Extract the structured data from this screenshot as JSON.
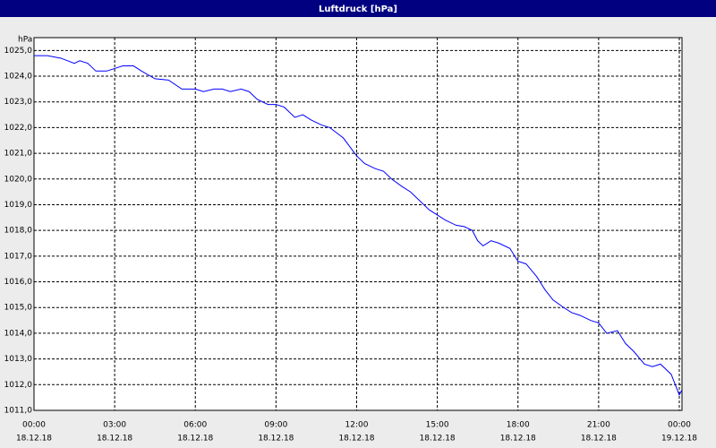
{
  "chart_data": {
    "type": "line",
    "title": "Luftdruck [hPa]",
    "y_label": "hPa",
    "x": [
      0,
      0.5,
      1,
      1.5,
      1.7,
      2,
      2.3,
      2.7,
      3,
      3.3,
      3.7,
      4,
      4.5,
      5,
      5.5,
      6,
      6.3,
      6.7,
      7,
      7.3,
      7.7,
      8,
      8.3,
      8.7,
      9,
      9.3,
      9.7,
      10,
      10.3,
      10.7,
      11,
      11.5,
      12,
      12.3,
      12.7,
      13,
      13.3,
      13.7,
      14,
      14.3,
      14.7,
      15,
      15.3,
      15.7,
      16,
      16.3,
      16.5,
      16.7,
      17,
      17.3,
      17.7,
      18,
      18.3,
      18.7,
      19,
      19.3,
      19.7,
      20,
      20.3,
      20.7,
      21,
      21.3,
      21.7,
      22,
      22.3,
      22.7,
      23,
      23.3,
      23.7,
      24,
      24.1
    ],
    "series": [
      {
        "name": "Luftdruck",
        "color": "#0000ff",
        "values": [
          1024.8,
          1024.8,
          1024.7,
          1024.5,
          1024.6,
          1024.5,
          1024.2,
          1024.2,
          1024.3,
          1024.4,
          1024.4,
          1024.2,
          1023.9,
          1023.85,
          1023.5,
          1023.5,
          1023.4,
          1023.5,
          1023.5,
          1023.4,
          1023.5,
          1023.4,
          1023.1,
          1022.9,
          1022.9,
          1022.8,
          1022.4,
          1022.5,
          1022.3,
          1022.1,
          1022.0,
          1021.6,
          1020.9,
          1020.6,
          1020.4,
          1020.3,
          1020.0,
          1019.7,
          1019.5,
          1019.2,
          1018.8,
          1018.6,
          1018.4,
          1018.2,
          1018.15,
          1018.0,
          1017.6,
          1017.4,
          1017.6,
          1017.5,
          1017.3,
          1016.8,
          1016.7,
          1016.2,
          1015.7,
          1015.3,
          1015.0,
          1014.8,
          1014.7,
          1014.5,
          1014.4,
          1014.0,
          1014.1,
          1013.6,
          1013.3,
          1012.8,
          1012.7,
          1012.8,
          1012.4,
          1011.6,
          1011.8
        ]
      }
    ],
    "xlim": [
      0,
      24.1
    ],
    "ylim": [
      1011,
      1025.5
    ],
    "xticks": [
      {
        "value": 0,
        "label": "00:00"
      },
      {
        "value": 3,
        "label": "03:00"
      },
      {
        "value": 6,
        "label": "06:00"
      },
      {
        "value": 9,
        "label": "09:00"
      },
      {
        "value": 12,
        "label": "12:00"
      },
      {
        "value": 15,
        "label": "15:00"
      },
      {
        "value": 18,
        "label": "18:00"
      },
      {
        "value": 21,
        "label": "21:00"
      },
      {
        "value": 24,
        "label": "00:00"
      }
    ],
    "xtick_dates": [
      "18.12.18",
      "18.12.18",
      "18.12.18",
      "18.12.18",
      "18.12.18",
      "18.12.18",
      "18.12.18",
      "18.12.18",
      "19.12.18"
    ],
    "yticks": [
      {
        "value": 1011,
        "label": "1011,0"
      },
      {
        "value": 1012,
        "label": "1012,0"
      },
      {
        "value": 1013,
        "label": "1013,0"
      },
      {
        "value": 1014,
        "label": "1014,0"
      },
      {
        "value": 1015,
        "label": "1015,0"
      },
      {
        "value": 1016,
        "label": "1016,0"
      },
      {
        "value": 1017,
        "label": "1017,0"
      },
      {
        "value": 1018,
        "label": "1018,0"
      },
      {
        "value": 1019,
        "label": "1019,0"
      },
      {
        "value": 1020,
        "label": "1020,0"
      },
      {
        "value": 1021,
        "label": "1021,0"
      },
      {
        "value": 1022,
        "label": "1022,0"
      },
      {
        "value": 1023,
        "label": "1023,0"
      },
      {
        "value": 1024,
        "label": "1024,0"
      },
      {
        "value": 1025,
        "label": "1025,0"
      }
    ],
    "grid": true
  }
}
